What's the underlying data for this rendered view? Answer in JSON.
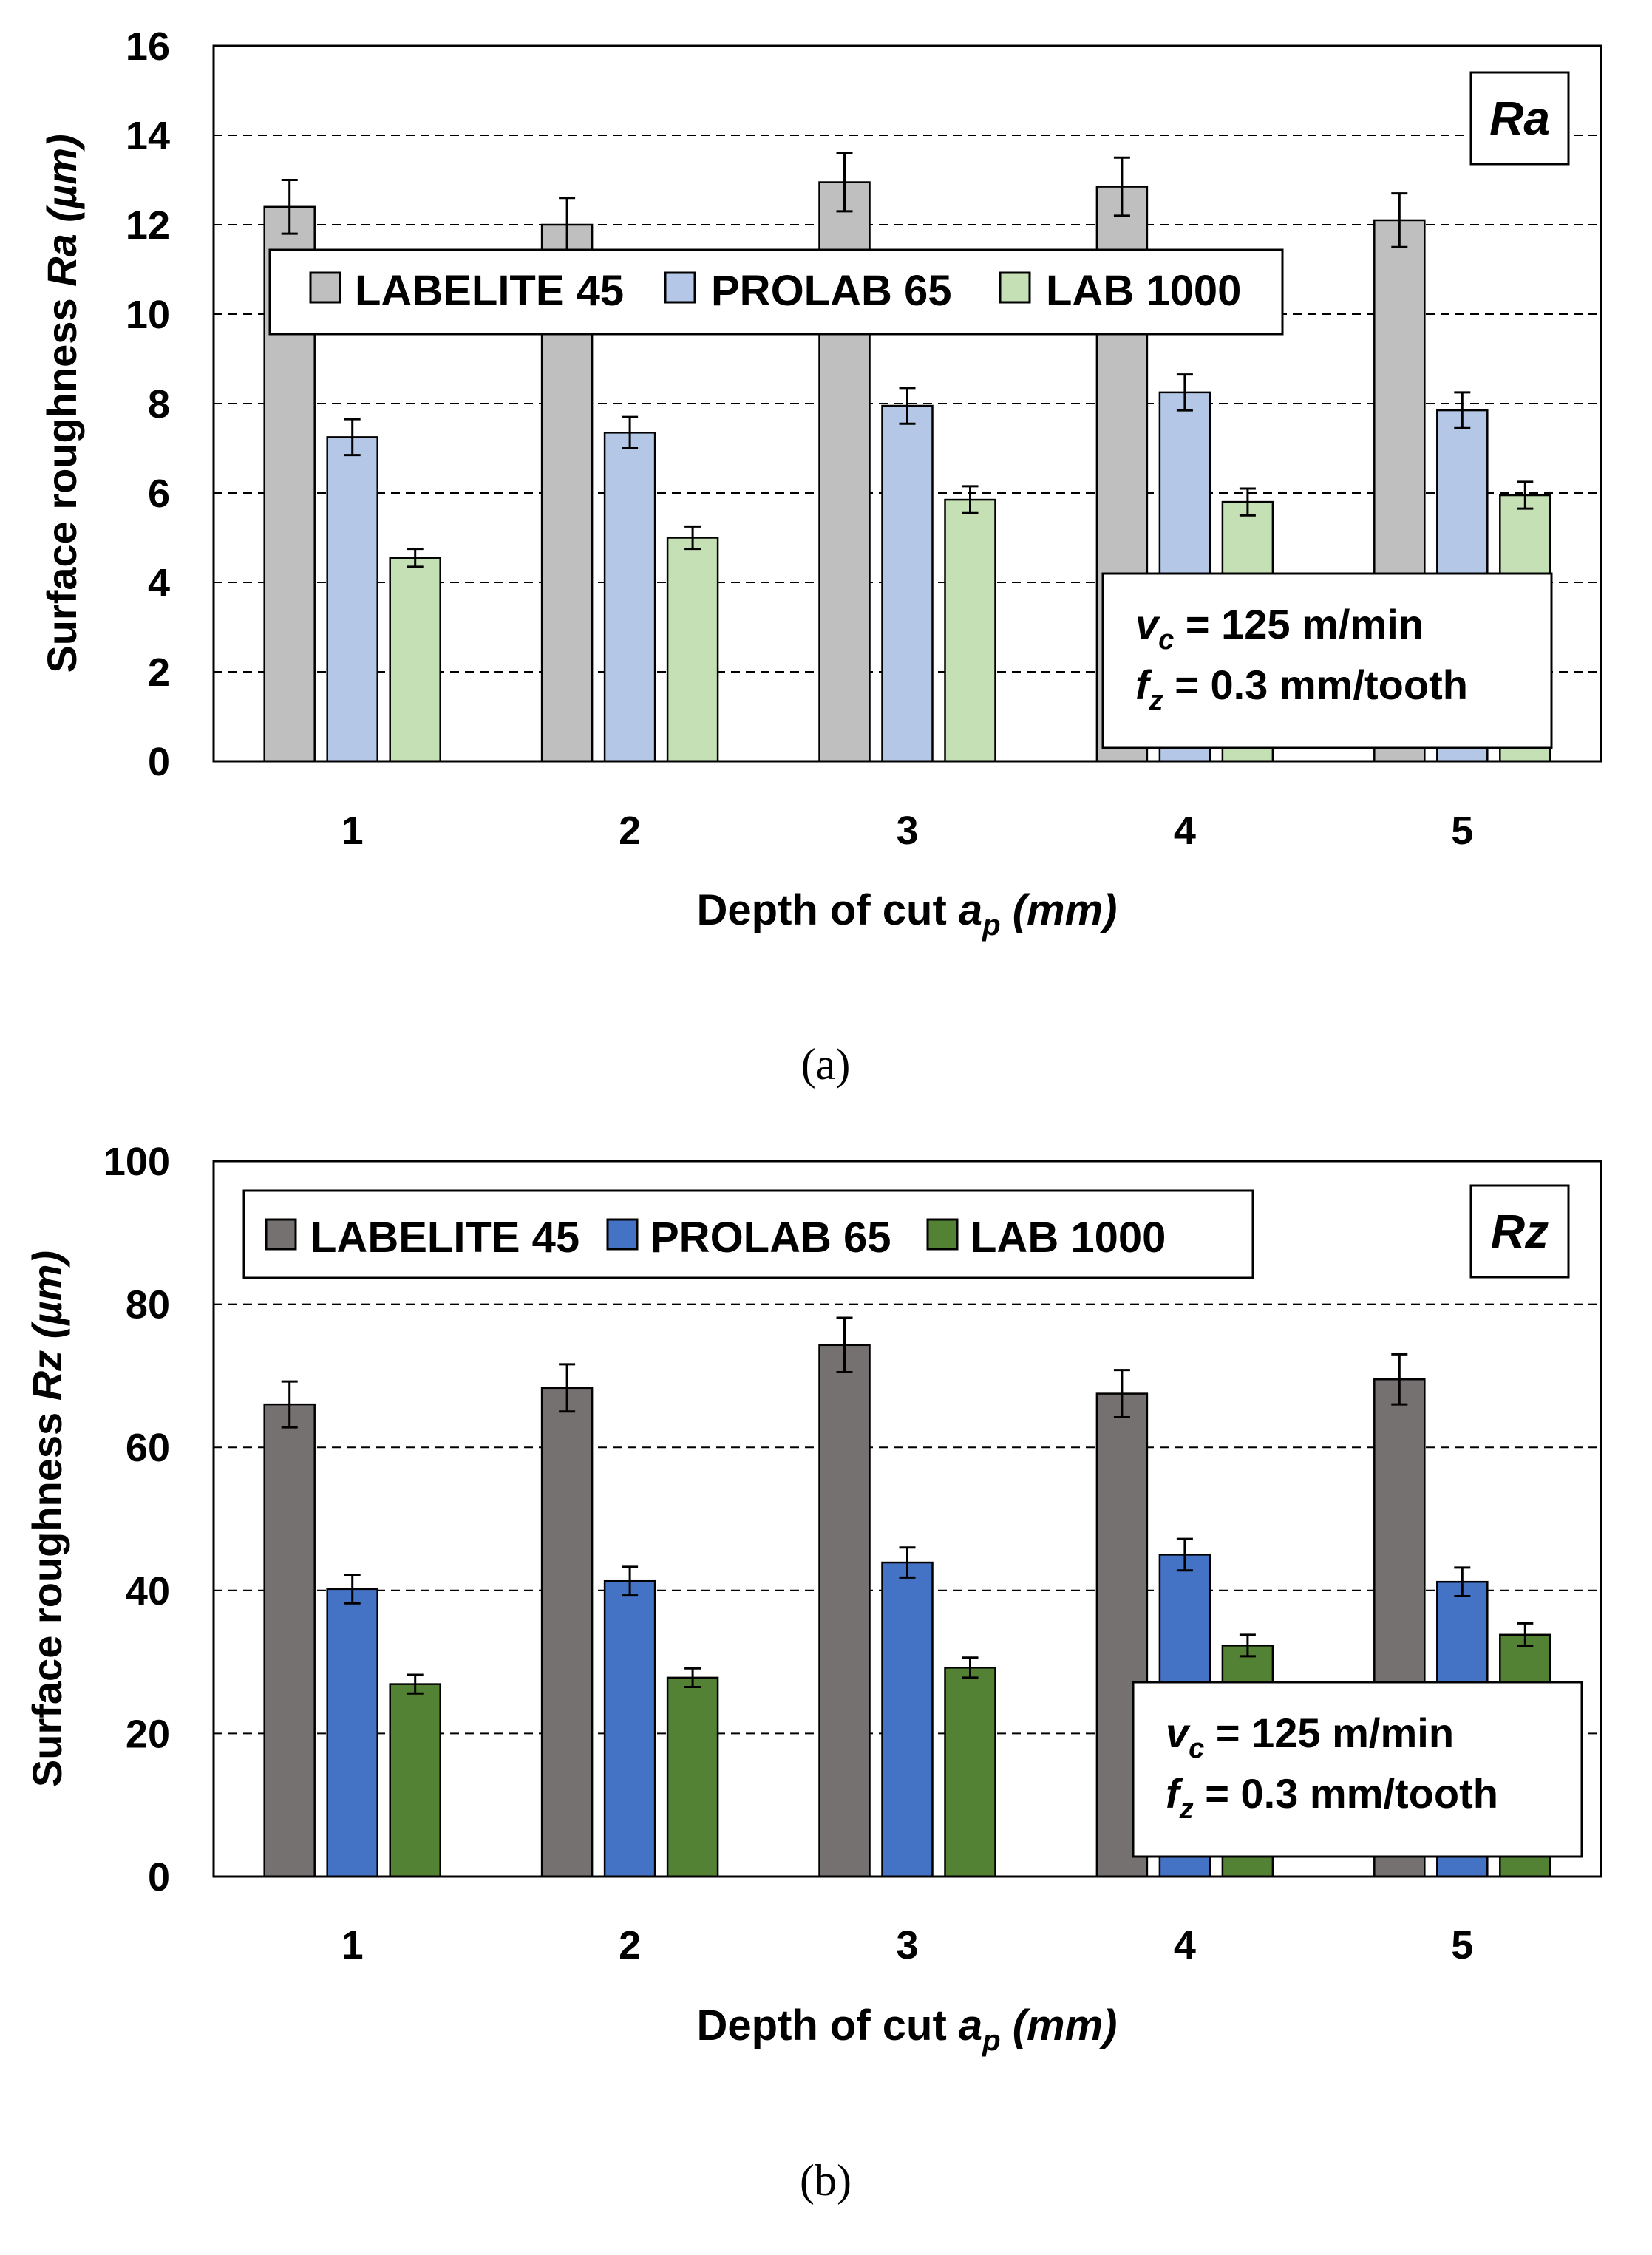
{
  "chart_data": [
    {
      "type": "bar",
      "caption": "(a)",
      "tag": "Ra",
      "categories": [
        "1",
        "2",
        "3",
        "4",
        "5"
      ],
      "series": [
        {
          "name": "LABELITE 45",
          "color": "#bfbfbf",
          "values": [
            12.4,
            12.0,
            12.95,
            12.85,
            12.1
          ],
          "errors": [
            0.6,
            0.6,
            0.65,
            0.65,
            0.6
          ]
        },
        {
          "name": "PROLAB 65",
          "color": "#b4c7e7",
          "values": [
            7.25,
            7.35,
            7.95,
            8.25,
            7.85
          ],
          "errors": [
            0.4,
            0.35,
            0.4,
            0.4,
            0.4
          ]
        },
        {
          "name": "LAB 1000",
          "color": "#c5e0b4",
          "values": [
            4.55,
            5.0,
            5.85,
            5.8,
            5.95
          ],
          "errors": [
            0.2,
            0.25,
            0.3,
            0.3,
            0.3
          ]
        }
      ],
      "ylabel_prefix": "Surface roughness ",
      "ylabel_var": "Ra",
      "ylabel_unit": " (µm)",
      "ylim": [
        0,
        16
      ],
      "yticks": [
        "0",
        "2",
        "4",
        "6",
        "8",
        "10",
        "12",
        "14",
        "16"
      ],
      "xlabel_prefix": "Depth of cut ",
      "xlabel_var": "a",
      "xlabel_sub": "p",
      "xlabel_unit": " (mm)",
      "params": {
        "line1_var": "v",
        "line1_sub": "c",
        "line1_text": " = 125 m/min",
        "line2_var": "f",
        "line2_sub": "z",
        "line2_text": " = 0.3 mm/tooth"
      },
      "grid": "dashed-horizontal",
      "legend": "top"
    },
    {
      "type": "bar",
      "caption": "(b)",
      "tag": "Rz",
      "categories": [
        "1",
        "2",
        "3",
        "4",
        "5"
      ],
      "series": [
        {
          "name": "LABELITE 45",
          "color": "#767171",
          "values": [
            66.0,
            68.3,
            74.3,
            67.5,
            69.5
          ],
          "errors": [
            3.2,
            3.3,
            3.8,
            3.3,
            3.5
          ]
        },
        {
          "name": "PROLAB 65",
          "color": "#4472c4",
          "values": [
            40.2,
            41.3,
            43.9,
            45.0,
            41.2
          ],
          "errors": [
            2.0,
            2.0,
            2.1,
            2.2,
            2.0
          ]
        },
        {
          "name": "LAB 1000",
          "color": "#548235",
          "values": [
            26.9,
            27.8,
            29.2,
            32.3,
            33.8
          ],
          "errors": [
            1.3,
            1.3,
            1.4,
            1.5,
            1.6
          ]
        }
      ],
      "ylabel_prefix": "Surface roughness ",
      "ylabel_var": "Rz",
      "ylabel_unit": " (µm)",
      "ylim": [
        0,
        100
      ],
      "yticks": [
        "0",
        "20",
        "40",
        "60",
        "80",
        "100"
      ],
      "xlabel_prefix": "Depth of cut ",
      "xlabel_var": "a",
      "xlabel_sub": "p",
      "xlabel_unit": " (mm)",
      "params": {
        "line1_var": "v",
        "line1_sub": "c",
        "line1_text": " = 125 m/min",
        "line2_var": "f",
        "line2_sub": "z",
        "line2_text": " = 0.3 mm/tooth"
      },
      "grid": "dashed-horizontal",
      "legend": "top"
    }
  ]
}
